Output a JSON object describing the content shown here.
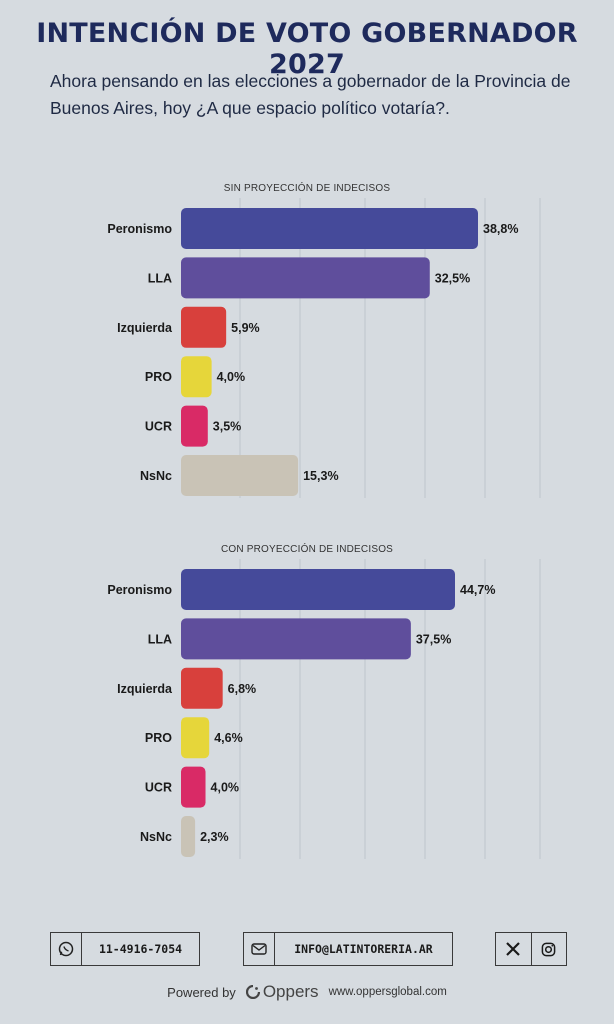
{
  "header": {
    "title": "INTENCIÓN DE VOTO GOBERNADOR 2027",
    "subtitle": "Ahora pensando en las elecciones a gobernador de la Provincia de Buenos Aires, hoy ¿A que espacio político votaría?."
  },
  "chart_data": [
    {
      "type": "bar",
      "orientation": "horizontal",
      "title": "SIN PROYECCIÓN DE INDECISOS",
      "categories": [
        "Peronismo",
        "LLA",
        "Izquierda",
        "PRO",
        "UCR",
        "NsNc"
      ],
      "values": [
        38.8,
        32.5,
        5.9,
        4.0,
        3.5,
        15.3
      ],
      "value_labels": [
        "38,8%",
        "32,5%",
        "5,9%",
        "4,0%",
        "3,5%",
        "15,3%"
      ],
      "colors": [
        "#454a9a",
        "#5f4e9c",
        "#d8403c",
        "#e6d63a",
        "#d92a66",
        "#c9c3b6"
      ],
      "xlim": [
        0,
        45
      ],
      "grid": true,
      "legend": "none"
    },
    {
      "type": "bar",
      "orientation": "horizontal",
      "title": "CON PROYECCIÓN DE INDECISOS",
      "categories": [
        "Peronismo",
        "LLA",
        "Izquierda",
        "PRO",
        "UCR",
        "NsNc"
      ],
      "values": [
        44.7,
        37.5,
        6.8,
        4.6,
        4.0,
        2.3
      ],
      "value_labels": [
        "44,7%",
        "37,5%",
        "6,8%",
        "4,6%",
        "4,0%",
        "2,3%"
      ],
      "colors": [
        "#454a9a",
        "#5f4e9c",
        "#d8403c",
        "#e6d63a",
        "#d92a66",
        "#c9c3b6"
      ],
      "xlim": [
        0,
        53
      ],
      "grid": true,
      "legend": "none"
    }
  ],
  "footer": {
    "phone": "11-4916-7054",
    "email": "INFO@LATINTORERIA.AR",
    "phone_icon": "whatsapp-icon",
    "email_icon": "mail-icon",
    "social_icons": [
      "x-icon",
      "instagram-icon"
    ],
    "powered_by": "Powered by",
    "brand": "Oppers",
    "website": "www.oppersglobal.com"
  }
}
